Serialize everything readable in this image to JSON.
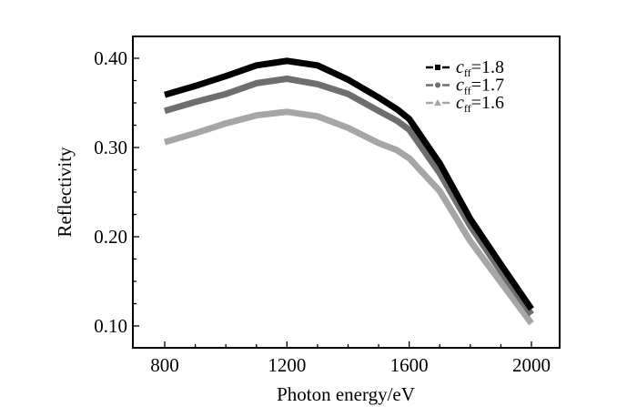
{
  "chart_data": {
    "type": "line",
    "title": "",
    "xlabel": "Photon energy/eV",
    "ylabel": "Reflectivity",
    "xlim": [
      700,
      2100
    ],
    "ylim": [
      0.085,
      0.425
    ],
    "xticks": [
      800,
      1200,
      1600,
      2000
    ],
    "xtick_labels": [
      "800",
      "1200",
      "1600",
      "2000"
    ],
    "x_minor_step": 100,
    "yticks": [
      0.1,
      0.2,
      0.3,
      0.4
    ],
    "ytick_labels": [
      "0.10",
      "0.20",
      "0.30",
      "0.40"
    ],
    "y_minor_step": 0.025,
    "grid": false,
    "legend_position": "top-right",
    "x": [
      800,
      900,
      1000,
      1100,
      1200,
      1300,
      1400,
      1500,
      1560,
      1600,
      1700,
      1800,
      1900,
      2000
    ],
    "series": [
      {
        "name": "c_ff=1.8",
        "legend_symbol": "c",
        "legend_sub": "ff",
        "legend_value": "=1.8",
        "marker": "square",
        "color": "#000000",
        "values": [
          0.359,
          0.369,
          0.38,
          0.392,
          0.397,
          0.392,
          0.376,
          0.356,
          0.343,
          0.332,
          0.282,
          0.22,
          0.169,
          0.119
        ]
      },
      {
        "name": "c_ff=1.7",
        "legend_symbol": "c",
        "legend_sub": "ff",
        "legend_value": "=1.7",
        "marker": "diamond",
        "color": "#6e6e6e",
        "values": [
          0.341,
          0.351,
          0.36,
          0.372,
          0.377,
          0.371,
          0.36,
          0.341,
          0.33,
          0.32,
          0.271,
          0.212,
          0.161,
          0.113
        ]
      },
      {
        "name": "c_ff=1.6",
        "legend_symbol": "c",
        "legend_sub": "ff",
        "legend_value": "=1.6",
        "marker": "triangle",
        "color": "#a6a6a6",
        "values": [
          0.306,
          0.316,
          0.327,
          0.336,
          0.34,
          0.335,
          0.322,
          0.305,
          0.297,
          0.288,
          0.251,
          0.195,
          0.149,
          0.103
        ]
      }
    ]
  }
}
